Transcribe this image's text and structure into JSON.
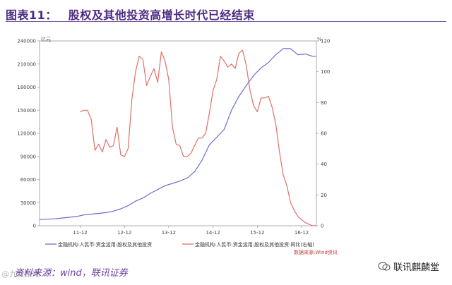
{
  "header": {
    "label": "图表11：",
    "title": "股权及其他投资高增长时代已经结束"
  },
  "footer": {
    "source_text": "资料来源：wind，联讯证券",
    "watermark_left": "@九数策略",
    "brand": "联讯麒麟堂"
  },
  "chart_data": {
    "type": "line",
    "left_unit": "亿元",
    "right_unit": "%",
    "source_note": "数据来源:Wind资讯",
    "x_ticks": [
      "11-12",
      "12-12",
      "13-12",
      "14-12",
      "15-12",
      "16-12"
    ],
    "y_left_ticks": [
      "0",
      "30000",
      "60000",
      "90000",
      "120000",
      "150000",
      "180000",
      "210000",
      "240000"
    ],
    "y_right_ticks": [
      "0",
      "20",
      "40",
      "60",
      "80",
      "100",
      "120"
    ],
    "ylim_left": [
      0,
      240000
    ],
    "ylim_right": [
      0,
      120
    ],
    "xlim": [
      0,
      75
    ],
    "series": [
      {
        "name": "金融机构:人民币:资金运用:股权及其他投资",
        "axis": "left",
        "color": "#6b6bd6",
        "x": [
          0,
          2,
          4,
          6,
          8,
          10,
          12,
          14,
          16,
          18,
          20,
          22,
          24,
          26,
          28,
          30,
          32,
          34,
          36,
          38,
          40,
          42,
          44,
          46,
          48,
          50,
          52,
          54,
          56,
          58,
          60,
          62,
          64,
          66,
          68,
          70,
          72,
          74,
          75
        ],
        "values": [
          8000,
          8500,
          9000,
          10000,
          11000,
          12000,
          14000,
          15000,
          16000,
          17000,
          19000,
          22000,
          26000,
          32000,
          36000,
          42000,
          47000,
          52000,
          55000,
          58000,
          62000,
          70000,
          85000,
          105000,
          115000,
          125000,
          150000,
          168000,
          182000,
          195000,
          205000,
          212000,
          222000,
          230000,
          230000,
          222000,
          223000,
          220000,
          220000
        ]
      },
      {
        "name": "金融机构:人民币:资金运用:股权及其他投资:同比(右轴)",
        "axis": "right",
        "color": "#e0706a",
        "x": [
          11,
          12,
          13,
          14,
          15,
          16,
          17,
          18,
          19,
          20,
          21,
          22,
          23,
          24,
          25,
          26,
          27,
          28,
          29,
          30,
          31,
          32,
          33,
          34,
          35,
          36,
          37,
          38,
          39,
          40,
          41,
          42,
          43,
          44,
          45,
          46,
          47,
          48,
          49,
          50,
          51,
          52,
          53,
          54,
          55,
          56,
          57,
          58,
          59,
          60,
          61,
          62,
          63,
          64,
          65,
          66,
          67,
          68,
          69,
          70,
          71,
          72,
          73,
          74,
          75
        ],
        "values": [
          74,
          75,
          75,
          69,
          49,
          53,
          48,
          56,
          51,
          52,
          64,
          46,
          45,
          50,
          82,
          100,
          110,
          108,
          91,
          97,
          102,
          93,
          113,
          107,
          95,
          64,
          53,
          52,
          45,
          45,
          47,
          52,
          57,
          57,
          60,
          73,
          88,
          95,
          110,
          107,
          103,
          105,
          102,
          112,
          114,
          104,
          88,
          78,
          74,
          83,
          83,
          84,
          77,
          66,
          48,
          33,
          26,
          15,
          10,
          6,
          4,
          2,
          1,
          0,
          0
        ]
      }
    ]
  }
}
